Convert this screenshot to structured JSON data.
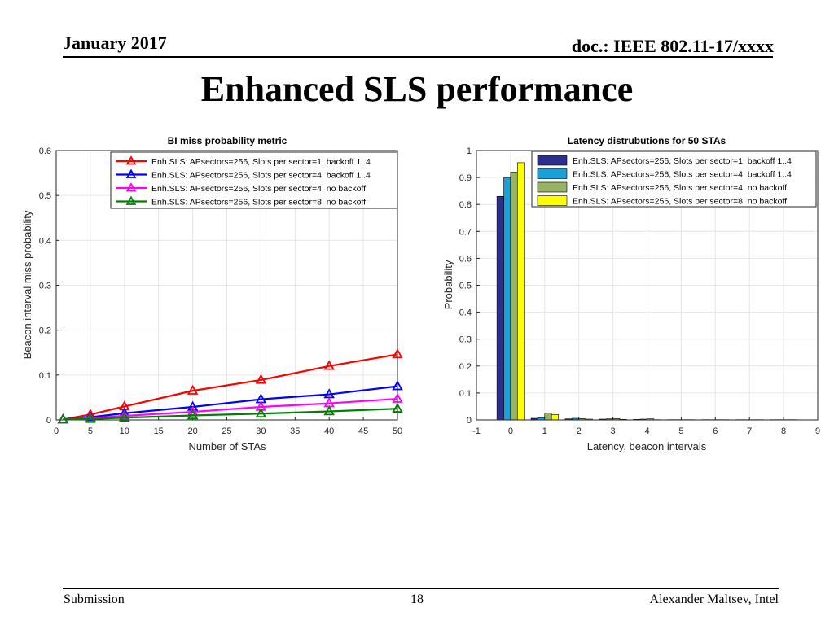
{
  "header": {
    "date": "January 2017",
    "doc": "doc.: IEEE 802.11-17/xxxx"
  },
  "slide": {
    "title": "Enhanced SLS performance"
  },
  "footer": {
    "left": "Submission",
    "page": "18",
    "right": "Alexander Maltsev, Intel"
  },
  "chart_data": [
    {
      "type": "line",
      "title": "BI miss probability metric",
      "xlabel": "Number of STAs",
      "ylabel": "Beacon interval miss probability",
      "xlim": [
        0,
        50
      ],
      "ylim": [
        0,
        0.6
      ],
      "xticks": [
        "0",
        "5",
        "10",
        "15",
        "20",
        "25",
        "30",
        "35",
        "40",
        "45",
        "50"
      ],
      "yticks": [
        "0",
        "0.1",
        "0.2",
        "0.3",
        "0.4",
        "0.5",
        "0.6"
      ],
      "grid": true,
      "legend_position": "top-right",
      "x": [
        1,
        5,
        10,
        20,
        30,
        40,
        50
      ],
      "series": [
        {
          "name": "Enh.SLS: APsectors=256, Slots per sector=1, backoff 1..4",
          "color": "#ff0000",
          "marker": "triangle-up",
          "values": [
            0.001,
            0.012,
            0.03,
            0.065,
            0.089,
            0.12,
            0.146
          ]
        },
        {
          "name": "Enh.SLS: APsectors=256, Slots per sector=4, backoff 1..4",
          "color": "#0000ff",
          "marker": "triangle-up",
          "values": [
            0.001,
            0.006,
            0.015,
            0.029,
            0.046,
            0.057,
            0.075
          ]
        },
        {
          "name": "Enh.SLS: APsectors=256, Slots per sector=4, no backoff",
          "color": "#ff00ff",
          "marker": "triangle-up",
          "values": [
            0.001,
            0.004,
            0.009,
            0.018,
            0.029,
            0.037,
            0.047
          ]
        },
        {
          "name": "Enh.SLS: APsectors=256, Slots per sector=8, no backoff",
          "color": "#008000",
          "marker": "triangle-up",
          "values": [
            0.001,
            0.002,
            0.005,
            0.01,
            0.014,
            0.019,
            0.025
          ]
        }
      ]
    },
    {
      "type": "bar",
      "title": "Latency distrubutions for 50 STAs",
      "xlabel": "Latency, beacon intervals",
      "ylabel": "Probability",
      "xlim": [
        -1,
        9
      ],
      "ylim": [
        0,
        1
      ],
      "xticks": [
        "-1",
        "0",
        "1",
        "2",
        "3",
        "4",
        "5",
        "6",
        "7",
        "8",
        "9"
      ],
      "yticks": [
        "0",
        "0.1",
        "0.2",
        "0.3",
        "0.4",
        "0.5",
        "0.6",
        "0.7",
        "0.8",
        "0.9",
        "1"
      ],
      "grid": true,
      "legend_position": "top-right",
      "categories": [
        0,
        1,
        2,
        3,
        4,
        5,
        6,
        7,
        8
      ],
      "series": [
        {
          "name": "Enh.SLS: APsectors=256, Slots per sector=1, backoff 1..4",
          "color": "#2e2e8c",
          "values": [
            0.83,
            0.006,
            0.004,
            0.003,
            0.002,
            0.001,
            0.001,
            0.001,
            0.001
          ]
        },
        {
          "name": "Enh.SLS: APsectors=256, Slots per sector=4, backoff 1..4",
          "color": "#1a9fd6",
          "values": [
            0.9,
            0.008,
            0.006,
            0.004,
            0.003,
            0.001,
            0.001,
            0.001,
            0.001
          ]
        },
        {
          "name": "Enh.SLS: APsectors=256, Slots per sector=4, no backoff",
          "color": "#96b464",
          "values": [
            0.92,
            0.025,
            0.005,
            0.005,
            0.004,
            0.001,
            0.001,
            0.001,
            0.001
          ]
        },
        {
          "name": "Enh.SLS: APsectors=256, Slots per sector=8, no backoff",
          "color": "#ffff00",
          "values": [
            0.955,
            0.02,
            0.003,
            0.002,
            0.001,
            0.001,
            0.001,
            0.001,
            0.001
          ]
        }
      ]
    }
  ]
}
